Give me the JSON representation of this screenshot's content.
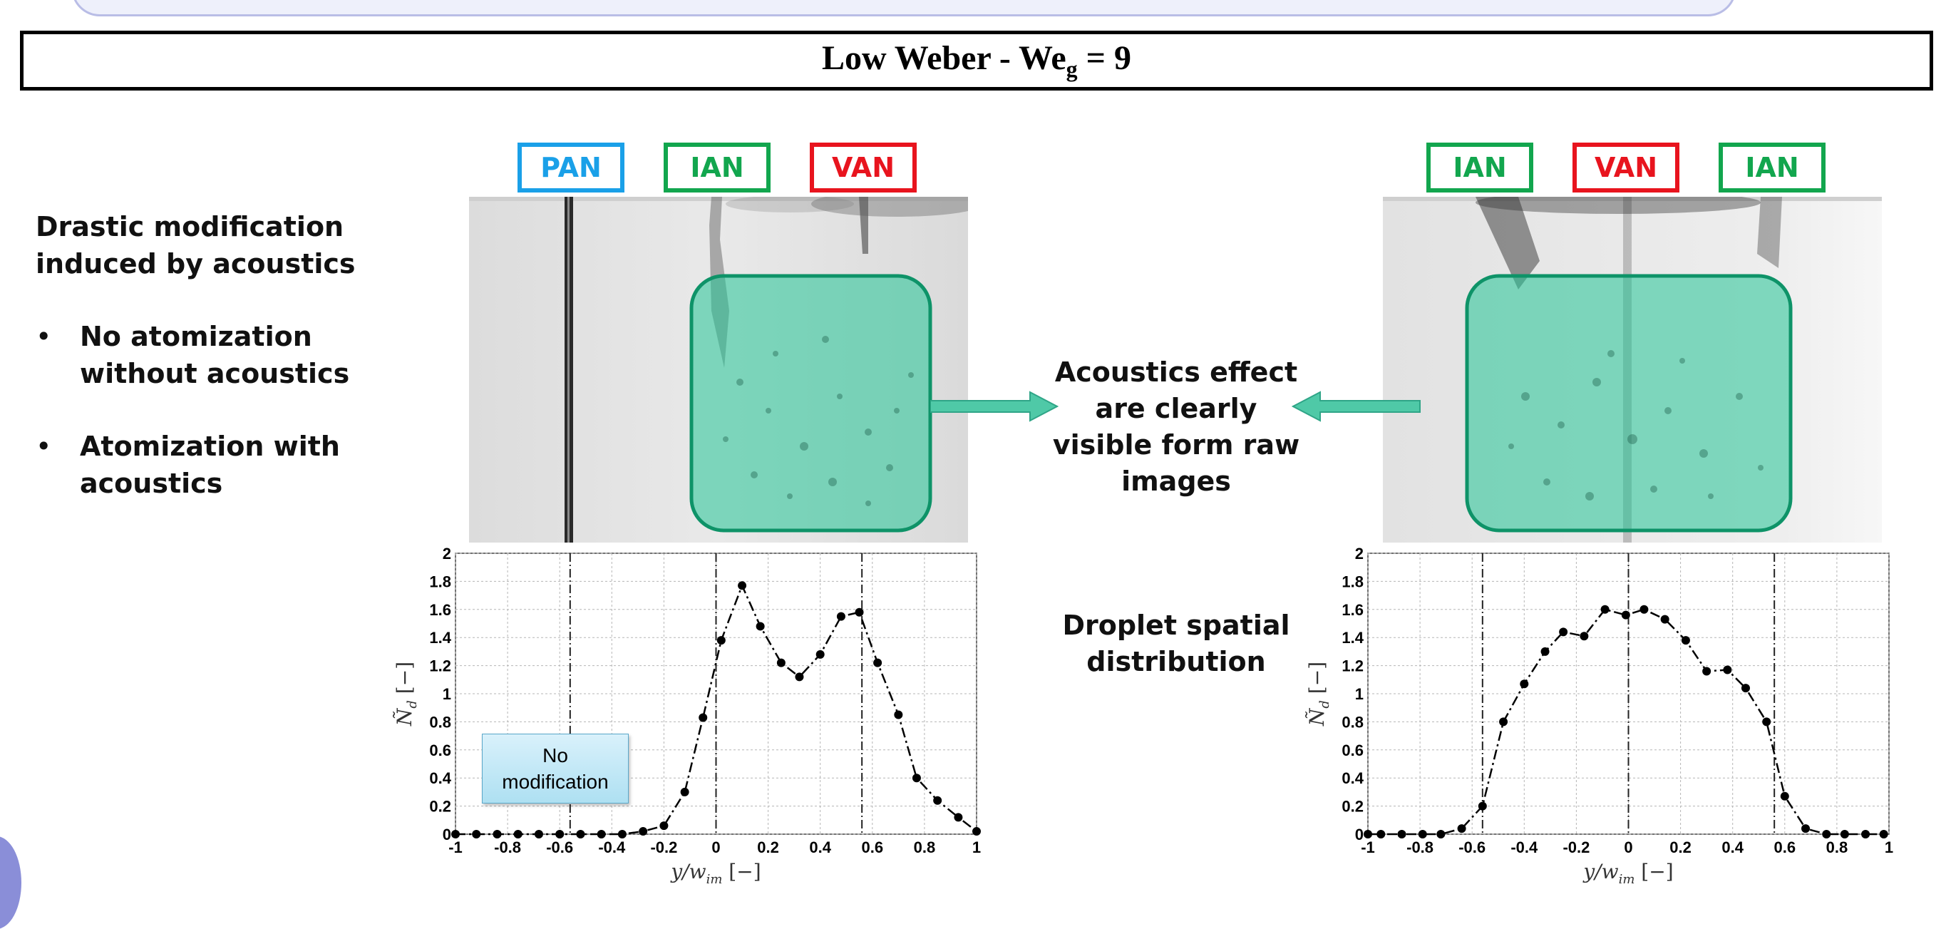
{
  "header": {
    "title": "Low Weber  - We",
    "title_sub": "g",
    "title_suffix": " = 9"
  },
  "left_panel": {
    "heading": "Drastic modification induced by acoustics",
    "bullets": [
      "No atomization without acoustics",
      "Atomization with acoustics"
    ]
  },
  "center_panel": {
    "effect_text": "Acoustics effect are clearly visible form raw images",
    "distribution_text": "Droplet spatial distribution"
  },
  "tags": {
    "left": [
      "PAN",
      "IAN",
      "VAN"
    ],
    "right": [
      "IAN",
      "VAN",
      "IAN"
    ]
  },
  "note": "No modification",
  "colors": {
    "pan": "#1aa0e8",
    "ian": "#12a64e",
    "van": "#e8141e",
    "highlight": "#22c495",
    "arrow": "#4fc9a7"
  },
  "chart_data": [
    {
      "type": "line",
      "xlabel": "y/w",
      "xlabel_sub": "im",
      "xlabel_unit": " [−]",
      "ylabel": "Ñ",
      "ylabel_sub": "d",
      "ylabel_unit": " [−]",
      "xlim": [
        -1,
        1
      ],
      "ylim": [
        0,
        2
      ],
      "grid": true,
      "xticks": [
        -1,
        -0.8,
        -0.6,
        -0.4,
        -0.2,
        0,
        0.2,
        0.4,
        0.6,
        0.8,
        1
      ],
      "xtick_labels": [
        "-1",
        "-0.8",
        "-0.6",
        "-0.4",
        "-0.2",
        "0",
        "0.2",
        "0.4",
        "0.6",
        "0.8",
        "1"
      ],
      "yticks": [
        0,
        0.2,
        0.4,
        0.6,
        0.8,
        1,
        1.2,
        1.4,
        1.6,
        1.8,
        2
      ],
      "ytick_labels": [
        "0",
        "0.2",
        "0.4",
        "0.6",
        "0.8",
        "1",
        "1.2",
        "1.4",
        "1.6",
        "1.8",
        "2"
      ],
      "vlines": [
        -0.56,
        0,
        0.56
      ],
      "x": [
        -1,
        -0.92,
        -0.84,
        -0.76,
        -0.68,
        -0.6,
        -0.52,
        -0.44,
        -0.36,
        -0.28,
        -0.2,
        -0.12,
        -0.05,
        0.02,
        0.1,
        0.17,
        0.25,
        0.32,
        0.4,
        0.48,
        0.55,
        0.62,
        0.7,
        0.77,
        0.85,
        0.93,
        1.0
      ],
      "y": [
        0,
        0,
        0,
        0,
        0,
        0,
        0,
        0,
        0,
        0.02,
        0.06,
        0.3,
        0.83,
        1.38,
        1.77,
        1.48,
        1.22,
        1.12,
        1.28,
        1.55,
        1.58,
        1.22,
        0.85,
        0.4,
        0.24,
        0.12,
        0.02
      ]
    },
    {
      "type": "line",
      "xlabel": "y/w",
      "xlabel_sub": "im",
      "xlabel_unit": " [−]",
      "ylabel": "Ñ",
      "ylabel_sub": "d",
      "ylabel_unit": " [−]",
      "xlim": [
        -1,
        1
      ],
      "ylim": [
        0,
        2
      ],
      "grid": true,
      "xticks": [
        -1,
        -0.8,
        -0.6,
        -0.4,
        -0.2,
        0,
        0.2,
        0.4,
        0.6,
        0.8,
        1
      ],
      "xtick_labels": [
        "-1",
        "-0.8",
        "-0.6",
        "-0.4",
        "-0.2",
        "0",
        "0.2",
        "0.4",
        "0.6",
        "0.8",
        "1"
      ],
      "yticks": [
        0,
        0.2,
        0.4,
        0.6,
        0.8,
        1,
        1.2,
        1.4,
        1.6,
        1.8,
        2
      ],
      "ytick_labels": [
        "0",
        "0.2",
        "0.4",
        "0.6",
        "0.8",
        "1",
        "1.2",
        "1.4",
        "1.6",
        "1.8",
        "2"
      ],
      "vlines": [
        -0.56,
        0,
        0.56
      ],
      "x": [
        -1,
        -0.95,
        -0.87,
        -0.79,
        -0.72,
        -0.64,
        -0.56,
        -0.48,
        -0.4,
        -0.32,
        -0.25,
        -0.17,
        -0.09,
        -0.01,
        0.06,
        0.14,
        0.22,
        0.3,
        0.38,
        0.45,
        0.53,
        0.6,
        0.68,
        0.76,
        0.83,
        0.91,
        0.98
      ],
      "y": [
        0,
        0,
        0,
        0,
        0,
        0.04,
        0.2,
        0.8,
        1.07,
        1.3,
        1.44,
        1.41,
        1.6,
        1.56,
        1.6,
        1.53,
        1.38,
        1.16,
        1.17,
        1.04,
        0.8,
        0.27,
        0.04,
        0.0,
        0.0,
        0.0,
        0.0
      ]
    }
  ]
}
